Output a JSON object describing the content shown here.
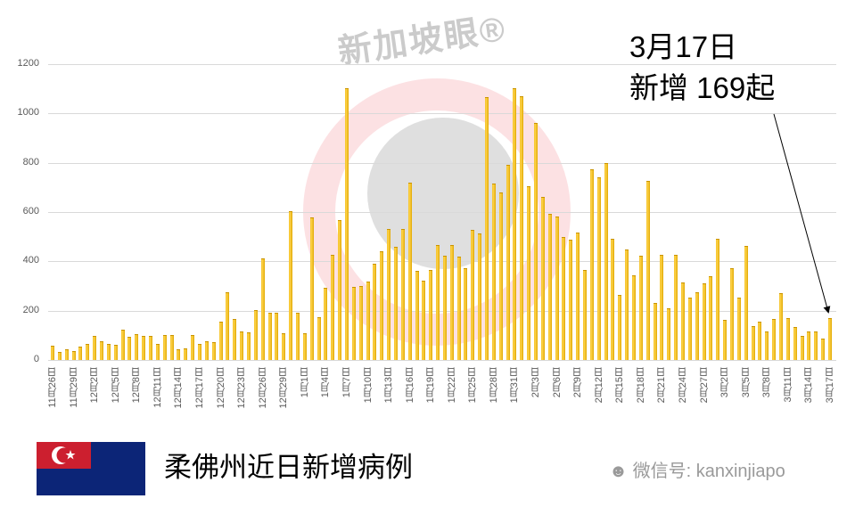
{
  "chart_data": {
    "type": "bar",
    "title": "柔佛州近日新增病例",
    "xlabel": "",
    "ylabel": "",
    "ylim": [
      0,
      1200
    ],
    "yticks": [
      0,
      200,
      400,
      600,
      800,
      1000,
      1200
    ],
    "grid": true,
    "legend": "none",
    "bar_color": "#F5B800",
    "categories": [
      "11月26日",
      "11月27日",
      "11月28日",
      "11月29日",
      "11月30日",
      "12月1日",
      "12月2日",
      "12月3日",
      "12月4日",
      "12月5日",
      "12月6日",
      "12月7日",
      "12月8日",
      "12月9日",
      "12月10日",
      "12月11日",
      "12月12日",
      "12月13日",
      "12月14日",
      "12月15日",
      "12月16日",
      "12月17日",
      "12月18日",
      "12月19日",
      "12月20日",
      "12月21日",
      "12月22日",
      "12月23日",
      "12月24日",
      "12月25日",
      "12月26日",
      "12月27日",
      "12月28日",
      "12月29日",
      "12月30日",
      "12月31日",
      "1月1日",
      "1月2日",
      "1月3日",
      "1月4日",
      "1月5日",
      "1月6日",
      "1月7日",
      "1月8日",
      "1月9日",
      "1月10日",
      "1月11日",
      "1月12日",
      "1月13日",
      "1月14日",
      "1月15日",
      "1月16日",
      "1月17日",
      "1月18日",
      "1月19日",
      "1月20日",
      "1月21日",
      "1月22日",
      "1月23日",
      "1月24日",
      "1月25日",
      "1月26日",
      "1月27日",
      "1月28日",
      "1月29日",
      "1月30日",
      "1月31日",
      "2月1日",
      "2月2日",
      "2月3日",
      "2月4日",
      "2月5日",
      "2月6日",
      "2月7日",
      "2月8日",
      "2月9日",
      "2月10日",
      "2月11日",
      "2月12日",
      "2月13日",
      "2月14日",
      "2月15日",
      "2月16日",
      "2月17日",
      "2月18日",
      "2月19日",
      "2月20日",
      "2月21日",
      "2月22日",
      "2月23日",
      "2月24日",
      "2月25日",
      "2月26日",
      "2月27日",
      "2月28日",
      "3月1日",
      "3月2日",
      "3月3日",
      "3月4日",
      "3月5日",
      "3月6日",
      "3月7日",
      "3月8日",
      "3月9日",
      "3月10日",
      "3月11日",
      "3月12日",
      "3月13日",
      "3月14日",
      "3月15日",
      "3月16日",
      "3月17日"
    ],
    "values": [
      58,
      33,
      45,
      37,
      54,
      65,
      98,
      75,
      65,
      63,
      122,
      95,
      106,
      97,
      98,
      65,
      101,
      101,
      43,
      48,
      101,
      65,
      76,
      74,
      155,
      275,
      166,
      117,
      113,
      202,
      411,
      193,
      190,
      108,
      603,
      193,
      110,
      578,
      175,
      293,
      425,
      567,
      1101,
      296,
      300,
      319,
      392,
      442,
      533,
      458,
      533,
      718,
      360,
      323,
      366,
      468,
      422,
      465,
      420,
      373,
      527,
      512,
      1067,
      714,
      681,
      790,
      1102,
      1069,
      705,
      962,
      662,
      594,
      582,
      499,
      488,
      518,
      365,
      775,
      742,
      800,
      490,
      265,
      448,
      343,
      423,
      728,
      231,
      428,
      208,
      426,
      316,
      254,
      273,
      312,
      340,
      490,
      161,
      374,
      253,
      461,
      137,
      155,
      115,
      166,
      272,
      169,
      133,
      97,
      115,
      114,
      88,
      169
    ],
    "annotation": {
      "date": "3月17日",
      "text": "新增 169起",
      "value": 169
    }
  },
  "axis": {
    "yticks": [
      "0",
      "200",
      "400",
      "600",
      "800",
      "1000",
      "1200"
    ],
    "xtick_labels": [
      "11月26日",
      "11月29日",
      "12月2日",
      "12月5日",
      "12月8日",
      "12月11日",
      "12月14日",
      "12月17日",
      "12月20日",
      "12月23日",
      "12月26日",
      "12月29日",
      "1月1日",
      "1月4日",
      "1月7日",
      "1月10日",
      "1月13日",
      "1月16日",
      "1月19日",
      "1月22日",
      "1月25日",
      "1月28日",
      "1月31日",
      "2月3日",
      "2月6日",
      "2月9日",
      "2月12日",
      "2月15日",
      "2月18日",
      "2月21日",
      "2月24日",
      "2月27日",
      "3月2日",
      "3月5日",
      "3月8日",
      "3月11日",
      "3月14日",
      "3月17日"
    ]
  },
  "annotation": {
    "line1": "3月17日",
    "line2": "新增 169起"
  },
  "watermark": {
    "text": "新加坡眼®"
  },
  "footer": {
    "title": "柔佛州近日新增病例",
    "wechat": "微信号: kanxinjiapo",
    "flag": "johor-flag"
  },
  "colors": {
    "bar": "#F5B800",
    "flag_red": "#CC1F2F",
    "flag_blue": "#0C2577",
    "grid": "#D9D9D9"
  }
}
